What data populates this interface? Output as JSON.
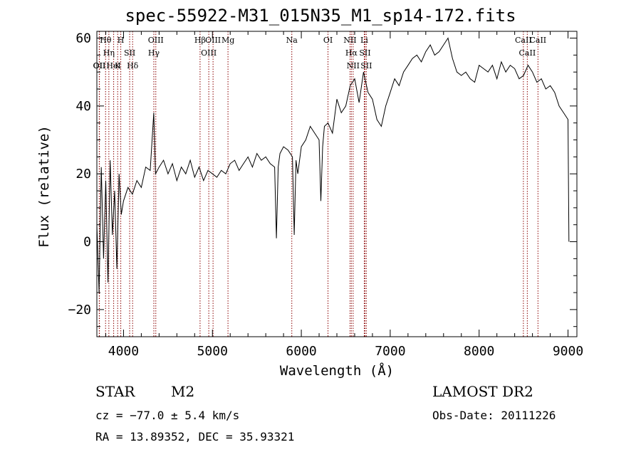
{
  "title": "spec-55922-M31_015N35_M1_sp14-172.fits",
  "info": {
    "class": "STAR",
    "subclass": "M2",
    "survey": "LAMOST DR2",
    "cz": "cz = −77.0 ± 5.4 km/s",
    "obs_date": "Obs-Date: 20111226",
    "radec": "RA =  13.89352, DEC =  35.93321"
  },
  "chart_data": {
    "type": "line",
    "title": "spec-55922-M31_015N35_M1_sp14-172.fits",
    "xlabel": "Wavelength (Å)",
    "ylabel": "Flux (relative)",
    "xlim": [
      3700,
      9100
    ],
    "ylim": [
      -28,
      62
    ],
    "xticks": [
      4000,
      5000,
      6000,
      7000,
      8000,
      9000
    ],
    "yticks": [
      -20,
      0,
      20,
      40,
      60
    ],
    "grid": false,
    "legend": "none",
    "line_color": "#000000",
    "marker_color": "#8b0000",
    "series": [
      {
        "x": [
          3700,
          3725,
          3750,
          3775,
          3800,
          3825,
          3850,
          3875,
          3900,
          3925,
          3950,
          3975,
          4000,
          4050,
          4100,
          4150,
          4200,
          4250,
          4300,
          4340,
          4360,
          4400,
          4450,
          4500,
          4550,
          4600,
          4650,
          4700,
          4750,
          4800,
          4850,
          4900,
          4950,
          5000,
          5050,
          5100,
          5150,
          5200,
          5250,
          5300,
          5350,
          5400,
          5450,
          5500,
          5550,
          5600,
          5650,
          5700,
          5720,
          5740,
          5760,
          5800,
          5850,
          5900,
          5920,
          5940,
          5960,
          6000,
          6050,
          6100,
          6150,
          6200,
          6220,
          6240,
          6260,
          6300,
          6350,
          6400,
          6450,
          6500,
          6550,
          6600,
          6650,
          6700,
          6750,
          6800,
          6850,
          6900,
          6950,
          7000,
          7050,
          7100,
          7150,
          7200,
          7250,
          7300,
          7350,
          7400,
          7450,
          7500,
          7550,
          7600,
          7650,
          7700,
          7750,
          7800,
          7850,
          7900,
          7950,
          8000,
          8050,
          8100,
          8150,
          8200,
          8250,
          8300,
          8350,
          8400,
          8450,
          8500,
          8550,
          8600,
          8650,
          8700,
          8750,
          8800,
          8850,
          8900,
          8950,
          9000,
          9010
        ],
        "y": [
          5,
          -15,
          22,
          -5,
          18,
          -12,
          24,
          2,
          15,
          -8,
          20,
          8,
          12,
          16,
          14,
          18,
          16,
          22,
          21,
          38,
          20,
          22,
          24,
          20,
          23,
          18,
          22,
          20,
          24,
          19,
          22,
          18,
          21,
          20,
          19,
          21,
          20,
          23,
          24,
          21,
          23,
          25,
          22,
          26,
          24,
          25,
          23,
          22,
          1,
          22,
          26,
          28,
          27,
          25,
          2,
          24,
          20,
          28,
          30,
          34,
          32,
          30,
          12,
          28,
          34,
          35,
          32,
          42,
          38,
          40,
          46,
          48,
          41,
          50,
          44,
          42,
          36,
          34,
          40,
          44,
          48,
          46,
          50,
          52,
          54,
          55,
          53,
          56,
          58,
          55,
          56,
          58,
          60,
          54,
          50,
          49,
          50,
          48,
          47,
          52,
          51,
          50,
          52,
          48,
          53,
          50,
          52,
          51,
          48,
          49,
          52,
          50,
          47,
          48,
          45,
          46,
          44,
          40,
          38,
          36,
          0
        ],
        "values": [
          5,
          -15,
          22,
          -5,
          18,
          -12,
          24,
          2,
          15,
          -8,
          20,
          8,
          12,
          16,
          14,
          18,
          16,
          22,
          21,
          38,
          20,
          22,
          24,
          20,
          23,
          18,
          22,
          20,
          24,
          19,
          22,
          18,
          21,
          20,
          19,
          21,
          20,
          23,
          24,
          21,
          23,
          25,
          22,
          26,
          24,
          25,
          23,
          22,
          1,
          22,
          26,
          28,
          27,
          25,
          2,
          24,
          20,
          28,
          30,
          34,
          32,
          30,
          12,
          28,
          34,
          35,
          32,
          42,
          38,
          40,
          46,
          48,
          41,
          50,
          44,
          42,
          36,
          34,
          40,
          44,
          48,
          46,
          50,
          52,
          54,
          55,
          53,
          56,
          58,
          55,
          56,
          58,
          60,
          54,
          50,
          49,
          50,
          48,
          47,
          52,
          51,
          50,
          52,
          48,
          53,
          50,
          52,
          51,
          48,
          49,
          52,
          50,
          47,
          48,
          45,
          46,
          44,
          40,
          38,
          36,
          0
        ]
      }
    ],
    "line_markers": [
      {
        "label": "Hθ",
        "wavelength": 3798
      },
      {
        "label": "Hη",
        "wavelength": 3835
      },
      {
        "label": "OII",
        "wavelength": 3727
      },
      {
        "label": "OII",
        "wavelength": 3729
      },
      {
        "label": "HeI",
        "wavelength": 3889
      },
      {
        "label": "K",
        "wavelength": 3934
      },
      {
        "label": "H",
        "wavelength": 3969
      },
      {
        "label": "SII",
        "wavelength": 4069
      },
      {
        "label": "Hδ",
        "wavelength": 4102
      },
      {
        "label": "OIII",
        "wavelength": 4363
      },
      {
        "label": "Hγ",
        "wavelength": 4341
      },
      {
        "label": "Hβ",
        "wavelength": 4861
      },
      {
        "label": "OIII",
        "wavelength": 4959
      },
      {
        "label": "OIII",
        "wavelength": 5007
      },
      {
        "label": "Mg",
        "wavelength": 5175
      },
      {
        "label": "Na",
        "wavelength": 5893
      },
      {
        "label": "OI",
        "wavelength": 6300
      },
      {
        "label": "NII",
        "wavelength": 6548
      },
      {
        "label": "Hα",
        "wavelength": 6563
      },
      {
        "label": "NII",
        "wavelength": 6583
      },
      {
        "label": "Li",
        "wavelength": 6708
      },
      {
        "label": "SII",
        "wavelength": 6716
      },
      {
        "label": "SII",
        "wavelength": 6731
      },
      {
        "label": "CaII",
        "wavelength": 8498
      },
      {
        "label": "CaII",
        "wavelength": 8542
      },
      {
        "label": "CaII",
        "wavelength": 8662
      }
    ]
  }
}
